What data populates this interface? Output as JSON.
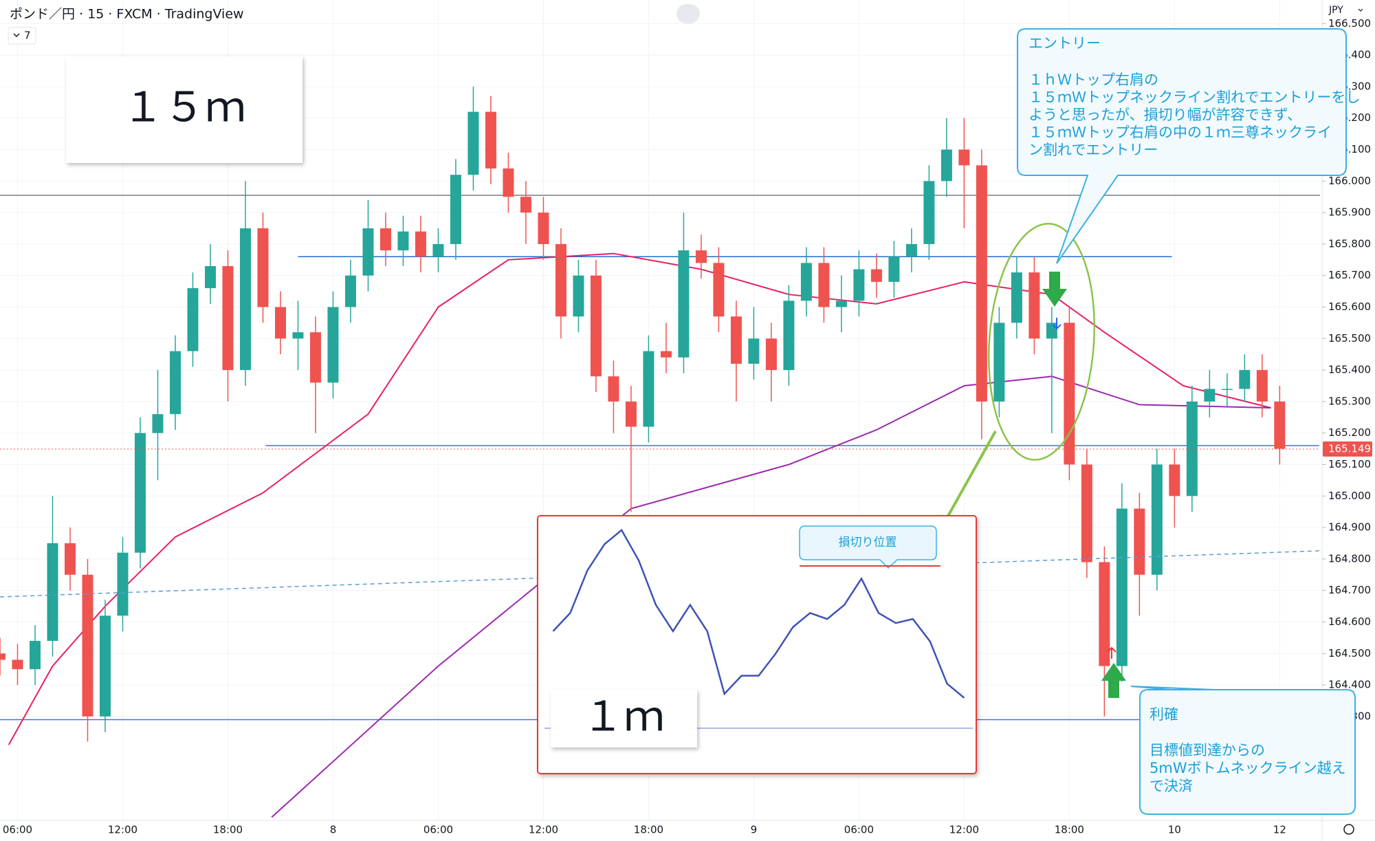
{
  "header": {
    "title": "ポンド／円 · 15 · FXCM · TradingView",
    "indicators": "7",
    "currency": "JPY"
  },
  "chart_data": [
    {
      "type": "candlestick",
      "x": [
        5,
        6,
        7,
        8,
        9,
        10,
        11,
        12,
        13,
        14,
        15,
        16,
        17,
        18,
        19,
        20,
        21,
        22,
        23,
        24,
        25,
        26,
        27,
        28,
        29,
        30,
        31,
        32,
        33,
        34,
        35,
        36,
        37,
        38,
        39,
        40,
        41,
        42,
        43,
        44,
        45,
        46,
        47,
        48,
        49,
        50,
        51,
        52,
        53,
        54,
        55,
        56,
        57,
        58,
        59,
        60,
        61,
        62,
        63,
        64,
        65,
        66,
        67,
        68,
        69,
        70,
        71,
        72,
        73,
        74,
        75,
        76,
        77,
        78
      ],
      "open": [
        164.5,
        164.48,
        164.45,
        164.54,
        164.85,
        164.75,
        164.3,
        164.62,
        164.82,
        165.2,
        165.26,
        165.46,
        165.66,
        165.73,
        165.4,
        165.85,
        165.6,
        165.5,
        165.52,
        165.36,
        165.6,
        165.7,
        165.85,
        165.78,
        165.84,
        165.76,
        165.8,
        166.02,
        166.22,
        166.04,
        165.95,
        165.9,
        165.8,
        165.57,
        165.7,
        165.38,
        165.3,
        165.22,
        165.46,
        165.44,
        165.78,
        165.74,
        165.57,
        165.42,
        165.5,
        165.4,
        165.62,
        165.74,
        165.6,
        165.62,
        165.72,
        165.68,
        165.76,
        165.8,
        166.0,
        166.1,
        166.05,
        165.3,
        165.55,
        165.71,
        165.5,
        165.55,
        165.1,
        164.79,
        164.46,
        164.96,
        164.75,
        165.1,
        165.0,
        165.3,
        165.34,
        165.34,
        165.4,
        165.3
      ],
      "high": [
        164.55,
        164.53,
        164.59,
        165.0,
        164.9,
        164.8,
        164.67,
        164.87,
        165.25,
        165.4,
        165.51,
        165.71,
        165.8,
        165.78,
        166.0,
        165.9,
        165.65,
        165.62,
        165.57,
        165.65,
        165.75,
        165.94,
        165.9,
        165.89,
        165.89,
        165.85,
        166.07,
        166.3,
        166.27,
        166.09,
        166.0,
        165.95,
        165.85,
        165.75,
        165.75,
        165.43,
        165.35,
        165.51,
        165.55,
        165.9,
        165.83,
        165.79,
        165.62,
        165.6,
        165.55,
        165.67,
        165.79,
        165.79,
        165.7,
        165.78,
        165.77,
        165.81,
        165.85,
        166.05,
        166.2,
        166.2,
        166.1,
        165.6,
        165.76,
        165.76,
        165.6,
        165.6,
        165.15,
        164.84,
        165.04,
        165.01,
        165.15,
        165.15,
        165.35,
        165.4,
        165.39,
        165.45,
        165.45,
        165.35
      ],
      "low": [
        164.43,
        164.4,
        164.4,
        164.49,
        164.7,
        164.22,
        164.25,
        164.57,
        164.77,
        165.05,
        165.21,
        165.41,
        165.61,
        165.3,
        165.35,
        165.55,
        165.45,
        165.4,
        165.2,
        165.31,
        165.55,
        165.65,
        165.73,
        165.73,
        165.71,
        165.71,
        165.75,
        165.97,
        165.99,
        165.9,
        165.8,
        165.75,
        165.5,
        165.52,
        165.33,
        165.2,
        164.95,
        165.17,
        165.39,
        165.39,
        165.69,
        165.52,
        165.3,
        165.37,
        165.3,
        165.35,
        165.57,
        165.55,
        165.52,
        165.57,
        165.63,
        165.63,
        165.71,
        165.75,
        165.95,
        165.85,
        165.18,
        165.25,
        165.5,
        165.45,
        165.2,
        165.05,
        164.74,
        164.3,
        164.41,
        164.62,
        164.7,
        164.9,
        164.95,
        165.25,
        165.28,
        165.3,
        165.25,
        165.1
      ],
      "close": [
        164.48,
        164.45,
        164.54,
        164.85,
        164.75,
        164.3,
        164.62,
        164.82,
        165.2,
        165.26,
        165.46,
        165.66,
        165.73,
        165.4,
        165.85,
        165.6,
        165.5,
        165.52,
        165.36,
        165.6,
        165.7,
        165.85,
        165.78,
        165.84,
        165.76,
        165.8,
        166.02,
        166.22,
        166.04,
        165.95,
        165.9,
        165.8,
        165.57,
        165.7,
        165.38,
        165.3,
        165.22,
        165.46,
        165.44,
        165.78,
        165.74,
        165.57,
        165.42,
        165.5,
        165.4,
        165.62,
        165.74,
        165.6,
        165.62,
        165.72,
        165.68,
        165.76,
        165.8,
        166.0,
        166.1,
        166.05,
        165.3,
        165.55,
        165.71,
        165.5,
        165.55,
        165.1,
        164.79,
        164.46,
        164.96,
        164.75,
        165.1,
        165.0,
        165.3,
        165.34,
        165.34,
        165.4,
        165.3,
        165.15
      ],
      "up_color": "#26a69a",
      "down_color": "#ef5350",
      "series": [
        {
          "color": "#e91e63",
          "x": [
            5.5,
            8,
            11,
            15,
            20,
            26,
            30,
            34,
            40,
            45,
            50,
            55,
            60,
            65,
            68,
            72.5,
            77.5
          ],
          "values": [
            164.21,
            164.46,
            164.65,
            164.87,
            165.01,
            165.26,
            165.6,
            165.75,
            165.77,
            165.72,
            165.64,
            165.61,
            165.68,
            165.64,
            165.52,
            165.35,
            165.28
          ]
        },
        {
          "color": "#9c27b0",
          "x": [
            20.5,
            30,
            41,
            50,
            55,
            60,
            65,
            70,
            77.5
          ],
          "values": [
            163.98,
            164.46,
            164.96,
            165.1,
            165.21,
            165.35,
            165.38,
            165.29,
            165.28
          ]
        }
      ],
      "levels": [
        {
          "value": 165.955,
          "color": "#787b86",
          "x": [
            5,
            80.3
          ]
        },
        {
          "value": 165.76,
          "color": "#1e6fd0",
          "x": [
            22,
            71.85
          ]
        },
        {
          "value": 165.16,
          "color": "#4a6cf0",
          "x": [
            20.15,
            80.25
          ]
        },
        {
          "value": 164.29,
          "color": "#4a6cf0",
          "x": [
            5,
            80.3
          ]
        }
      ],
      "last_price": {
        "value": 165.149,
        "label": "165.149",
        "color": "#ef5350"
      },
      "xlim": [
        5,
        80.3
      ],
      "ylim": [
        163.97,
        166.575
      ],
      "xticks": [
        {
          "value": 6,
          "label": "06:00"
        },
        {
          "value": 12,
          "label": "12:00"
        },
        {
          "value": 18,
          "label": "18:00"
        },
        {
          "value": 24,
          "label": "8"
        },
        {
          "value": 30,
          "label": "06:00"
        },
        {
          "value": 36,
          "label": "12:00"
        },
        {
          "value": 42,
          "label": "18:00"
        },
        {
          "value": 48,
          "label": "9"
        },
        {
          "value": 54,
          "label": "06:00"
        },
        {
          "value": 60,
          "label": "12:00"
        },
        {
          "value": 66,
          "label": "18:00"
        },
        {
          "value": 72,
          "label": "10"
        },
        {
          "value": 78,
          "label": "12"
        }
      ],
      "yticks": [
        {
          "value": 164.3,
          "label": "164.300"
        },
        {
          "value": 164.4,
          "label": "164.400"
        },
        {
          "value": 164.5,
          "label": "164.500"
        },
        {
          "value": 164.6,
          "label": "164.600"
        },
        {
          "value": 164.7,
          "label": "164.700"
        },
        {
          "value": 164.8,
          "label": "164.800"
        },
        {
          "value": 164.9,
          "label": "164.900"
        },
        {
          "value": 165,
          "label": "165.000"
        },
        {
          "value": 165.1,
          "label": "165.100"
        },
        {
          "value": 165.2,
          "label": "165.200"
        },
        {
          "value": 165.3,
          "label": "165.300"
        },
        {
          "value": 165.4,
          "label": "165.400"
        },
        {
          "value": 165.5,
          "label": "165.500"
        },
        {
          "value": 165.6,
          "label": "165.600"
        },
        {
          "value": 165.7,
          "label": "165.700"
        },
        {
          "value": 165.8,
          "label": "165.800"
        },
        {
          "value": 165.9,
          "label": "165.900"
        },
        {
          "value": 166,
          "label": "166.000"
        },
        {
          "value": 166.1,
          "label": "166.100"
        },
        {
          "value": 166.2,
          "label": "166.200"
        },
        {
          "value": 166.3,
          "label": "166.300"
        },
        {
          "value": 166.4,
          "label": "166.400"
        },
        {
          "value": 166.5,
          "label": "166.500"
        }
      ],
      "grid": true
    },
    {
      "type": "line",
      "x": [
        0,
        1,
        2,
        3,
        4,
        5,
        6,
        7,
        8,
        9,
        10,
        11,
        12,
        13,
        14,
        15,
        16,
        17,
        18,
        19,
        20,
        21,
        22,
        23,
        24
      ],
      "values": [
        48,
        57,
        78,
        91,
        98,
        83,
        61,
        48,
        61,
        48,
        17,
        26,
        26,
        37,
        50,
        57,
        54,
        61,
        74,
        57,
        52,
        54,
        43,
        22,
        15
      ],
      "color": "#3f51b5",
      "xlim": [
        -0.5,
        24.5
      ],
      "ylim": [
        0,
        100
      ]
    }
  ],
  "annotations": {
    "label_15m": "１５ｍ",
    "label_1m": "１ｍ",
    "stop_loss": "損切り位置",
    "entry": [
      "エントリー",
      "１ｈＷトップ右肩の",
      "１５ｍＷトップネックライン割れでエントリーをし",
      "ようと思ったが、損切り幅が許容できず、",
      "１５ｍＷトップ右肩の中の１ｍ三尊ネックライ",
      "ン割れでエントリー"
    ],
    "take_profit": [
      "利確",
      "目標値到達からの",
      "5mWボトムネックライン越え",
      "で決済"
    ]
  }
}
